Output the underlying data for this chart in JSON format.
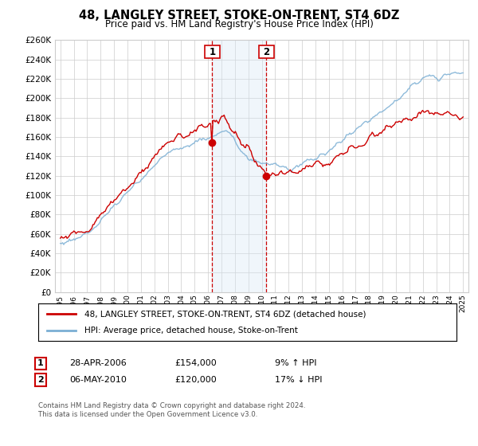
{
  "title": "48, LANGLEY STREET, STOKE-ON-TRENT, ST4 6DZ",
  "subtitle": "Price paid vs. HM Land Registry's House Price Index (HPI)",
  "ylim": [
    0,
    260000
  ],
  "yticks": [
    0,
    20000,
    40000,
    60000,
    80000,
    100000,
    120000,
    140000,
    160000,
    180000,
    200000,
    220000,
    240000,
    260000
  ],
  "sale1_year": 2006.32,
  "sale1_price": 154000,
  "sale2_year": 2010.35,
  "sale2_price": 120000,
  "sale1_date": "28-APR-2006",
  "sale1_amount": "£154,000",
  "sale1_hpi": "9% ↑ HPI",
  "sale2_date": "06-MAY-2010",
  "sale2_amount": "£120,000",
  "sale2_hpi": "17% ↓ HPI",
  "legend1": "48, LANGLEY STREET, STOKE-ON-TRENT, ST4 6DZ (detached house)",
  "legend2": "HPI: Average price, detached house, Stoke-on-Trent",
  "footer": "Contains HM Land Registry data © Crown copyright and database right 2024.\nThis data is licensed under the Open Government Licence v3.0.",
  "red_color": "#cc0000",
  "blue_color": "#7bafd4",
  "shading_color": "#d6e8f5",
  "grid_color": "#cccccc",
  "background_color": "#ffffff",
  "xlim_left": 1994.6,
  "xlim_right": 2025.4
}
